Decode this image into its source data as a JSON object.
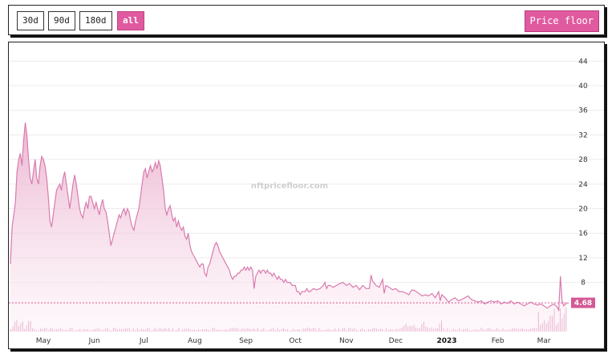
{
  "toolbar": {
    "ranges": [
      "30d",
      "90d",
      "180d",
      "all"
    ],
    "active_range": "all",
    "metric_label": "Price floor"
  },
  "watermark": "nftpricefloor.com",
  "colors": {
    "accent": "#e05aa0",
    "line": "#d97bae",
    "fill_top": "#e8a9c9",
    "volume": "#d77aa9",
    "last_price_tag": "#d45a95"
  },
  "chart_data": {
    "type": "area",
    "y_ticks": [
      8,
      12,
      16,
      20,
      24,
      28,
      32,
      36,
      40,
      44
    ],
    "ylim": [
      0,
      46
    ],
    "x_labels": [
      "May",
      "Jun",
      "Jul",
      "Aug",
      "Sep",
      "Oct",
      "Nov",
      "Dec",
      "2023",
      "Feb",
      "Mar"
    ],
    "x_label_days": [
      20,
      51,
      81,
      112,
      143,
      173,
      204,
      234,
      265,
      296,
      324
    ],
    "xlim_days": [
      0,
      340
    ],
    "grid": true,
    "last_price_label": "4.68",
    "series": [
      {
        "values_day_price": [
          [
            0,
            11
          ],
          [
            1,
            17
          ],
          [
            3,
            21
          ],
          [
            4,
            26
          ],
          [
            5,
            28
          ],
          [
            6,
            29
          ],
          [
            7,
            27
          ],
          [
            8,
            31
          ],
          [
            9,
            34
          ],
          [
            10,
            32
          ],
          [
            11,
            28
          ],
          [
            12,
            25
          ],
          [
            13,
            24
          ],
          [
            14,
            26
          ],
          [
            15,
            28
          ],
          [
            16,
            25
          ],
          [
            17,
            24
          ],
          [
            18,
            27
          ],
          [
            19,
            28.5
          ],
          [
            20,
            28
          ],
          [
            21,
            27
          ],
          [
            22,
            25
          ],
          [
            23,
            22
          ],
          [
            24,
            18
          ],
          [
            25,
            17
          ],
          [
            26,
            19
          ],
          [
            27,
            21
          ],
          [
            28,
            23
          ],
          [
            30,
            24
          ],
          [
            31,
            23
          ],
          [
            32,
            25
          ],
          [
            33,
            26
          ],
          [
            34,
            24
          ],
          [
            35,
            22
          ],
          [
            36,
            20
          ],
          [
            37,
            22
          ],
          [
            38,
            24
          ],
          [
            39,
            25.5
          ],
          [
            40,
            24
          ],
          [
            41,
            22
          ],
          [
            42,
            20
          ],
          [
            43,
            19
          ],
          [
            44,
            18.5
          ],
          [
            45,
            20
          ],
          [
            46,
            21
          ],
          [
            47,
            20
          ],
          [
            48,
            22
          ],
          [
            49,
            22
          ],
          [
            50,
            21
          ],
          [
            51,
            20
          ],
          [
            52,
            21
          ],
          [
            53,
            20
          ],
          [
            54,
            19
          ],
          [
            55,
            20.5
          ],
          [
            56,
            21.5
          ],
          [
            57,
            20
          ],
          [
            58,
            19.5
          ],
          [
            59,
            18
          ],
          [
            60,
            16
          ],
          [
            61,
            14
          ],
          [
            62,
            15
          ],
          [
            63,
            16
          ],
          [
            64,
            17
          ],
          [
            65,
            18
          ],
          [
            66,
            19
          ],
          [
            67,
            18.5
          ],
          [
            68,
            19.5
          ],
          [
            69,
            20
          ],
          [
            70,
            19
          ],
          [
            71,
            20
          ],
          [
            72,
            19.5
          ],
          [
            73,
            18
          ],
          [
            74,
            17
          ],
          [
            75,
            16.5
          ],
          [
            76,
            18
          ],
          [
            77,
            19
          ],
          [
            78,
            20
          ],
          [
            79,
            22
          ],
          [
            80,
            24
          ],
          [
            81,
            26
          ],
          [
            82,
            26.5
          ],
          [
            83,
            25
          ],
          [
            84,
            26
          ],
          [
            85,
            27
          ],
          [
            86,
            26
          ],
          [
            87,
            26.5
          ],
          [
            88,
            27.5
          ],
          [
            89,
            26.5
          ],
          [
            90,
            27.8
          ],
          [
            91,
            27
          ],
          [
            92,
            25
          ],
          [
            93,
            23
          ],
          [
            94,
            20
          ],
          [
            95,
            19
          ],
          [
            96,
            20
          ],
          [
            97,
            20.5
          ],
          [
            98,
            19
          ],
          [
            99,
            18
          ],
          [
            100,
            18.5
          ],
          [
            101,
            17
          ],
          [
            102,
            18
          ],
          [
            103,
            17
          ],
          [
            104,
            16.5
          ],
          [
            105,
            17
          ],
          [
            106,
            15.5
          ],
          [
            107,
            15
          ],
          [
            108,
            16
          ],
          [
            109,
            14
          ],
          [
            110,
            13
          ],
          [
            111,
            12.5
          ],
          [
            112,
            12
          ],
          [
            113,
            11.5
          ],
          [
            114,
            11
          ],
          [
            115,
            10.5
          ],
          [
            116,
            11
          ],
          [
            117,
            11
          ],
          [
            118,
            9.5
          ],
          [
            119,
            9
          ],
          [
            120,
            10.5
          ],
          [
            121,
            11
          ],
          [
            122,
            12
          ],
          [
            123,
            13
          ],
          [
            124,
            14
          ],
          [
            125,
            14.5
          ],
          [
            126,
            14
          ],
          [
            127,
            13
          ],
          [
            128,
            12.5
          ],
          [
            129,
            12
          ],
          [
            130,
            11.5
          ],
          [
            131,
            11
          ],
          [
            132,
            10.5
          ],
          [
            133,
            10
          ],
          [
            134,
            9
          ],
          [
            135,
            8.5
          ],
          [
            136,
            9
          ],
          [
            137,
            9
          ],
          [
            138,
            9.5
          ],
          [
            139,
            9.5
          ],
          [
            140,
            10
          ],
          [
            141,
            10
          ],
          [
            142,
            10.5
          ],
          [
            143,
            10
          ],
          [
            144,
            10.5
          ],
          [
            145,
            10
          ],
          [
            146,
            10.5
          ],
          [
            147,
            10
          ],
          [
            148,
            7
          ],
          [
            149,
            9
          ],
          [
            150,
            9.5
          ],
          [
            151,
            10
          ],
          [
            152,
            9.5
          ],
          [
            153,
            10
          ],
          [
            154,
            10
          ],
          [
            155,
            9.5
          ],
          [
            156,
            10
          ],
          [
            157,
            9.5
          ],
          [
            158,
            9.5
          ],
          [
            159,
            9
          ],
          [
            160,
            9.5
          ],
          [
            161,
            9
          ],
          [
            162,
            8.5
          ],
          [
            163,
            9
          ],
          [
            164,
            8.5
          ],
          [
            165,
            8.5
          ],
          [
            166,
            8
          ],
          [
            167,
            8.5
          ],
          [
            168,
            8
          ],
          [
            169,
            8
          ],
          [
            170,
            8
          ],
          [
            171,
            7.5
          ],
          [
            172,
            7.5
          ],
          [
            173,
            7.5
          ],
          [
            174,
            6.5
          ],
          [
            175,
            6.5
          ],
          [
            176,
            6
          ],
          [
            177,
            6.5
          ],
          [
            178,
            6.5
          ],
          [
            179,
            6.5
          ],
          [
            180,
            7
          ],
          [
            181,
            6.5
          ],
          [
            182,
            6.5
          ],
          [
            184,
            7
          ],
          [
            186,
            6.8
          ],
          [
            188,
            7
          ],
          [
            190,
            7.5
          ],
          [
            191,
            8
          ],
          [
            192,
            7
          ],
          [
            193,
            7.5
          ],
          [
            194,
            7.5
          ],
          [
            196,
            7.2
          ],
          [
            198,
            7.5
          ],
          [
            200,
            7.8
          ],
          [
            202,
            8
          ],
          [
            204,
            7.5
          ],
          [
            206,
            7.8
          ],
          [
            208,
            7.2
          ],
          [
            210,
            7.5
          ],
          [
            212,
            6.8
          ],
          [
            214,
            7.5
          ],
          [
            216,
            7
          ],
          [
            218,
            7
          ],
          [
            219,
            9.2
          ],
          [
            220,
            8.2
          ],
          [
            222,
            7.5
          ],
          [
            224,
            7.2
          ],
          [
            226,
            8.5
          ],
          [
            227,
            6.2
          ],
          [
            228,
            7.5
          ],
          [
            230,
            7.2
          ],
          [
            232,
            6.8
          ],
          [
            234,
            7
          ],
          [
            236,
            6.5
          ],
          [
            238,
            6.5
          ],
          [
            240,
            6.3
          ],
          [
            242,
            6
          ],
          [
            243,
            6.5
          ],
          [
            244,
            6.8
          ],
          [
            246,
            6.6
          ],
          [
            248,
            6.2
          ],
          [
            250,
            5.8
          ],
          [
            252,
            6
          ],
          [
            254,
            5.8
          ],
          [
            256,
            6.2
          ],
          [
            258,
            5.5
          ],
          [
            260,
            6.5
          ],
          [
            261,
            5
          ],
          [
            262,
            6
          ],
          [
            264,
            5.5
          ],
          [
            266,
            4.8
          ],
          [
            268,
            5.2
          ],
          [
            270,
            5.5
          ],
          [
            272,
            5
          ],
          [
            274,
            5.2
          ],
          [
            276,
            5.5
          ],
          [
            278,
            5.8
          ],
          [
            280,
            5.2
          ],
          [
            282,
            5
          ],
          [
            284,
            4.8
          ],
          [
            286,
            5
          ],
          [
            288,
            4.5
          ],
          [
            290,
            4.8
          ],
          [
            292,
            5
          ],
          [
            294,
            4.8
          ],
          [
            296,
            5
          ],
          [
            298,
            4.5
          ],
          [
            300,
            4.8
          ],
          [
            302,
            4.6
          ],
          [
            304,
            5
          ],
          [
            306,
            4.5
          ],
          [
            308,
            4.8
          ],
          [
            310,
            4.5
          ],
          [
            312,
            4.2
          ],
          [
            314,
            4.5
          ],
          [
            316,
            4.8
          ],
          [
            318,
            4.5
          ],
          [
            320,
            4.3
          ],
          [
            322,
            4.5
          ],
          [
            324,
            4.2
          ],
          [
            326,
            3.8
          ],
          [
            328,
            4.2
          ],
          [
            330,
            4.5
          ],
          [
            332,
            4
          ],
          [
            333,
            3.5
          ],
          [
            334,
            9
          ],
          [
            335,
            5
          ],
          [
            336,
            4.2
          ],
          [
            338,
            4.68
          ]
        ]
      }
    ]
  }
}
